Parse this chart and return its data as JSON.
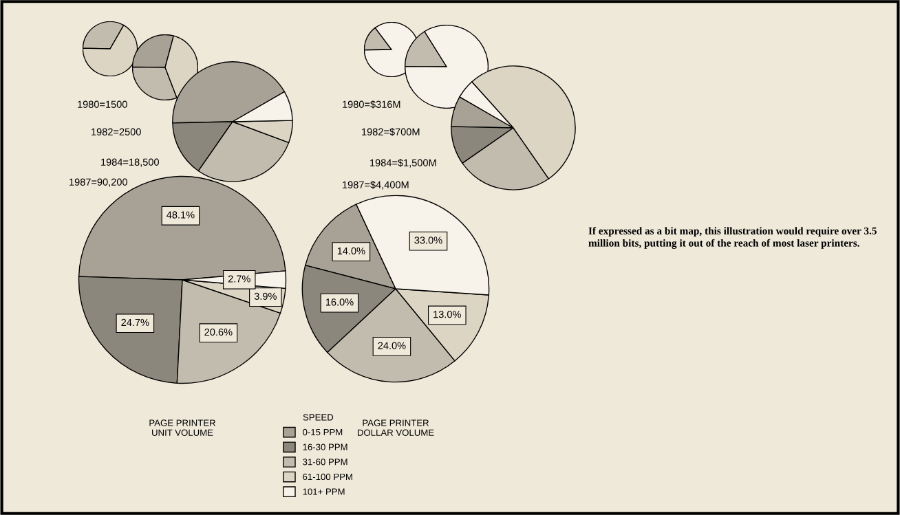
{
  "chart_data": [
    {
      "type": "pie",
      "categories": [
        null,
        null,
        null,
        null,
        null
      ],
      "values": [
        0,
        0,
        33,
        67,
        0
      ],
      "colors": [
        "#a8a296",
        "#8c877c",
        "#c2bcae",
        "#dcd5c4",
        "#f7f3ea"
      ]
    },
    {
      "type": "pie",
      "categories": [
        null,
        null,
        null,
        null,
        null
      ],
      "values": [
        29,
        0,
        31,
        40,
        0
      ],
      "colors": [
        "#a8a296",
        "#8c877c",
        "#c2bcae",
        "#dcd5c4",
        "#f7f3ea"
      ]
    },
    {
      "type": "pie",
      "categories": [
        null,
        null,
        null,
        null,
        null
      ],
      "values": [
        42,
        15,
        29,
        6,
        8
      ],
      "colors": [
        "#a8a296",
        "#8c877c",
        "#c2bcae",
        "#dcd5c4",
        "#f7f3ea"
      ]
    },
    {
      "type": "pie",
      "title": "PAGE PRINTER\nUNIT VOLUME",
      "legend_title": "SPEED",
      "legend": "bottom",
      "categories": [
        "0-15 PPM",
        "16-30 PPM",
        "31-60 PPM",
        "61-100 PPM",
        "101+ PPM"
      ],
      "values": [
        48.1,
        24.7,
        20.6,
        3.9,
        2.7
      ],
      "value_labels": [
        "48.1%",
        "24.7%",
        "20.6%",
        "3.9%",
        "2.7%"
      ],
      "colors": [
        "#a8a296",
        "#8c877c",
        "#c2bcae",
        "#dcd5c4",
        "#f7f3ea"
      ],
      "annotations": [
        "1980=1500",
        "1982=2500",
        "1984=18,500",
        "1987=90,200"
      ]
    },
    {
      "type": "pie",
      "categories": [
        null,
        null,
        null,
        null,
        null
      ],
      "values": [
        0,
        0,
        15,
        0,
        85
      ],
      "colors": [
        "#a8a296",
        "#8c877c",
        "#c2bcae",
        "#dcd5c4",
        "#f7f3ea"
      ]
    },
    {
      "type": "pie",
      "categories": [
        null,
        null,
        null,
        null,
        null
      ],
      "values": [
        0,
        0,
        16,
        0,
        84
      ],
      "colors": [
        "#a8a296",
        "#8c877c",
        "#c2bcae",
        "#dcd5c4",
        "#f7f3ea"
      ]
    },
    {
      "type": "pie",
      "categories": [
        null,
        null,
        null,
        null,
        null
      ],
      "values": [
        8,
        10,
        25,
        52,
        5
      ],
      "colors": [
        "#a8a296",
        "#8c877c",
        "#c2bcae",
        "#dcd5c4",
        "#f7f3ea"
      ]
    },
    {
      "type": "pie",
      "title": "PAGE PRINTER\nDOLLAR VOLUME",
      "categories": [
        null,
        null,
        null,
        null,
        null
      ],
      "values": [
        14.0,
        16.0,
        24.0,
        13.0,
        33.0
      ],
      "value_labels": [
        "14.0%",
        "16.0%",
        "24.0%",
        "13.0%",
        "33.0%"
      ],
      "colors": [
        "#a8a296",
        "#8c877c",
        "#c2bcae",
        "#dcd5c4",
        "#f7f3ea"
      ],
      "annotations": [
        "1980=$316M",
        "1982=$700M",
        "1984=$1,500M",
        "1987=$4,400M"
      ]
    },
    {
      "type": "other",
      "annotations": [
        "If expressed as a bit map, this illustration would require over 3.5 million bits, putting it out of the reach of most laser printers."
      ]
    }
  ]
}
